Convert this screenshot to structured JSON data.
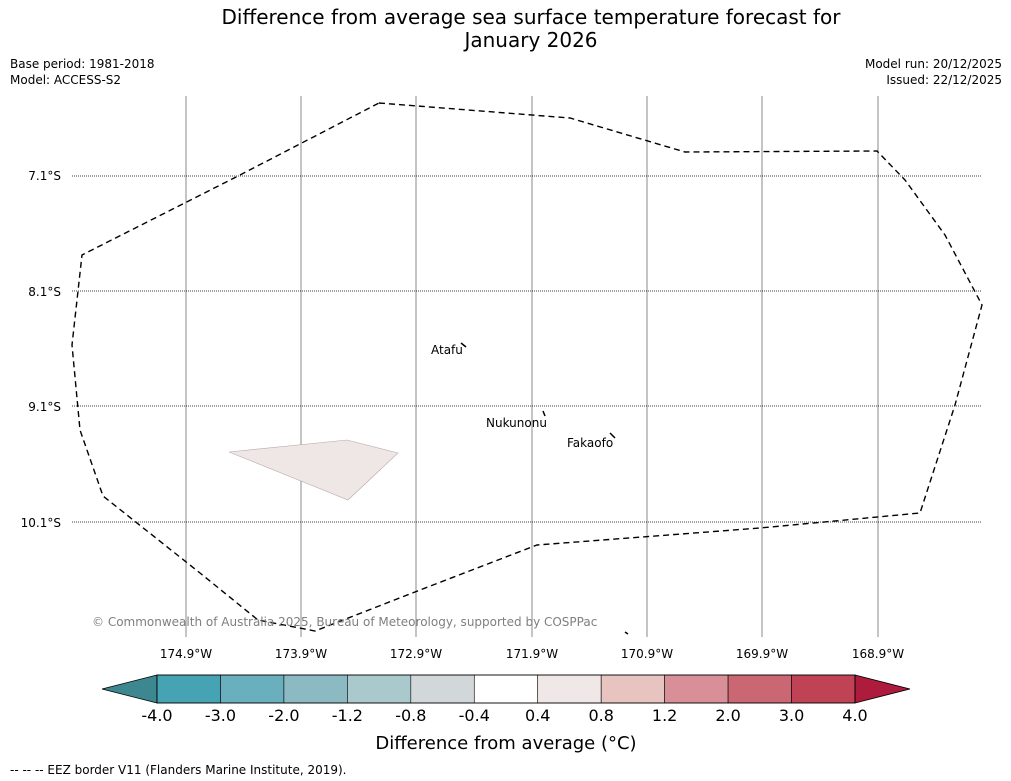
{
  "header": {
    "title_line1": "Difference from average sea surface temperature forecast for",
    "title_line2": "January 2026",
    "base_period": "Base period: 1981-2018",
    "model": "Model: ACCESS-S2",
    "model_run": "Model run: 20/12/2025",
    "issued": "Issued: 22/12/2025"
  },
  "map": {
    "lat_labels": [
      "7.1°S",
      "8.1°S",
      "9.1°S",
      "10.1°S"
    ],
    "lon_labels": [
      "174.9°W",
      "173.9°W",
      "172.9°W",
      "171.9°W",
      "170.9°W",
      "169.9°W",
      "168.9°W"
    ],
    "places": [
      "Atafu",
      "Nukunonu",
      "Fakaofo"
    ],
    "copyright": "© Commonwealth of Australia 2025, Bureau of Meteorology, supported by COSPPac"
  },
  "colorbar": {
    "ticks": [
      "-4.0",
      "-3.0",
      "-2.0",
      "-1.2",
      "-0.8",
      "-0.4",
      "0.4",
      "0.8",
      "1.2",
      "2.0",
      "3.0",
      "4.0"
    ],
    "colors": [
      "#46a3b4",
      "#6aafbd",
      "#8bbac3",
      "#a9c9cd",
      "#d2d8da",
      "#ffffff",
      "#f0e8e7",
      "#e8c4c1",
      "#d88f97",
      "#cb6673",
      "#c04355"
    ],
    "under_color": "#3c8790",
    "over_color": "#ad1b3d",
    "label": "Difference from average (°C)"
  },
  "legend": {
    "eez": "--  --  -- EEZ border V11 (Flanders Marine Institute, 2019)."
  }
}
